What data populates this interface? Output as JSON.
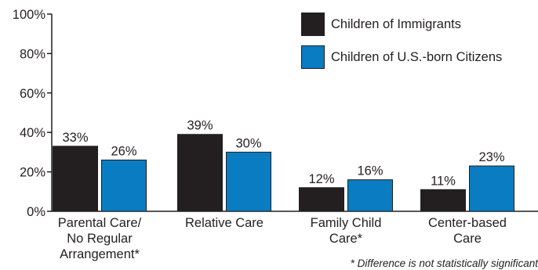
{
  "chart_data": {
    "type": "bar",
    "categories": [
      [
        "Parental Care/",
        "No Regular",
        "Arrangement*"
      ],
      [
        "Relative Care"
      ],
      [
        "Family Child",
        "Care*"
      ],
      [
        "Center-based",
        "Care"
      ]
    ],
    "series": [
      {
        "name": "Children of Immigrants",
        "color": "#231f20",
        "values": [
          33,
          39,
          12,
          11
        ],
        "labels": [
          "33%",
          "39%",
          "12%",
          "11%"
        ]
      },
      {
        "name": "Children of U.S.-born Citizens",
        "color": "#0a7cc1",
        "values": [
          26,
          30,
          16,
          23
        ],
        "labels": [
          "26%",
          "30%",
          "16%",
          "23%"
        ]
      }
    ],
    "yticks": [
      "0%",
      "20%",
      "40%",
      "60%",
      "80%",
      "100%"
    ],
    "ylim": [
      0,
      100
    ],
    "legend_position": "top-right",
    "footnote": "* Difference is not statistically significant"
  }
}
